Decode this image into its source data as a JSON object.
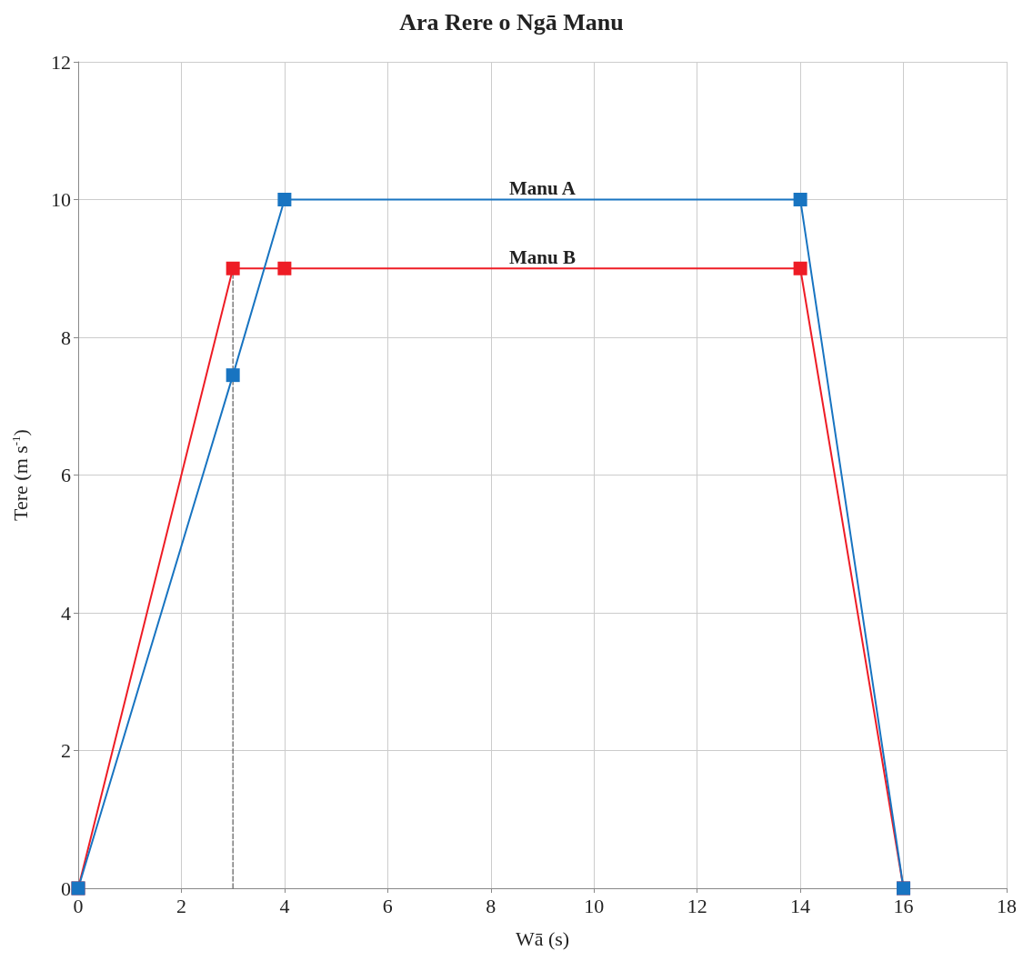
{
  "chart_data": {
    "type": "line",
    "title": "Ara Rere o Ngā Manu",
    "xlabel": "Wā (s)",
    "ylabel": "Tere (m s$^{-1}$)",
    "xlim": [
      0,
      18
    ],
    "xticks": [
      0,
      2,
      4,
      6,
      8,
      10,
      12,
      14,
      16,
      18
    ],
    "ylim": [
      0,
      12
    ],
    "yticks": [
      0,
      2,
      4,
      6,
      8,
      10,
      12
    ],
    "grid": true,
    "legend": false,
    "marker": "square",
    "line_style": "solid",
    "series": [
      {
        "name": "Manu B",
        "color": "#ee1c25",
        "x": [
          0,
          3,
          4,
          14,
          16
        ],
        "values": [
          0,
          9,
          9,
          9,
          0
        ]
      },
      {
        "name": "Manu A",
        "color": "#1874c1",
        "x": [
          0,
          3,
          4,
          14,
          16
        ],
        "values": [
          0,
          7.45,
          10,
          10,
          0
        ]
      },
      {
        "color": "#666666",
        "x": [
          3,
          3
        ],
        "values": [
          0,
          9
        ],
        "marker": "none",
        "line_style": "dashed"
      }
    ]
  }
}
